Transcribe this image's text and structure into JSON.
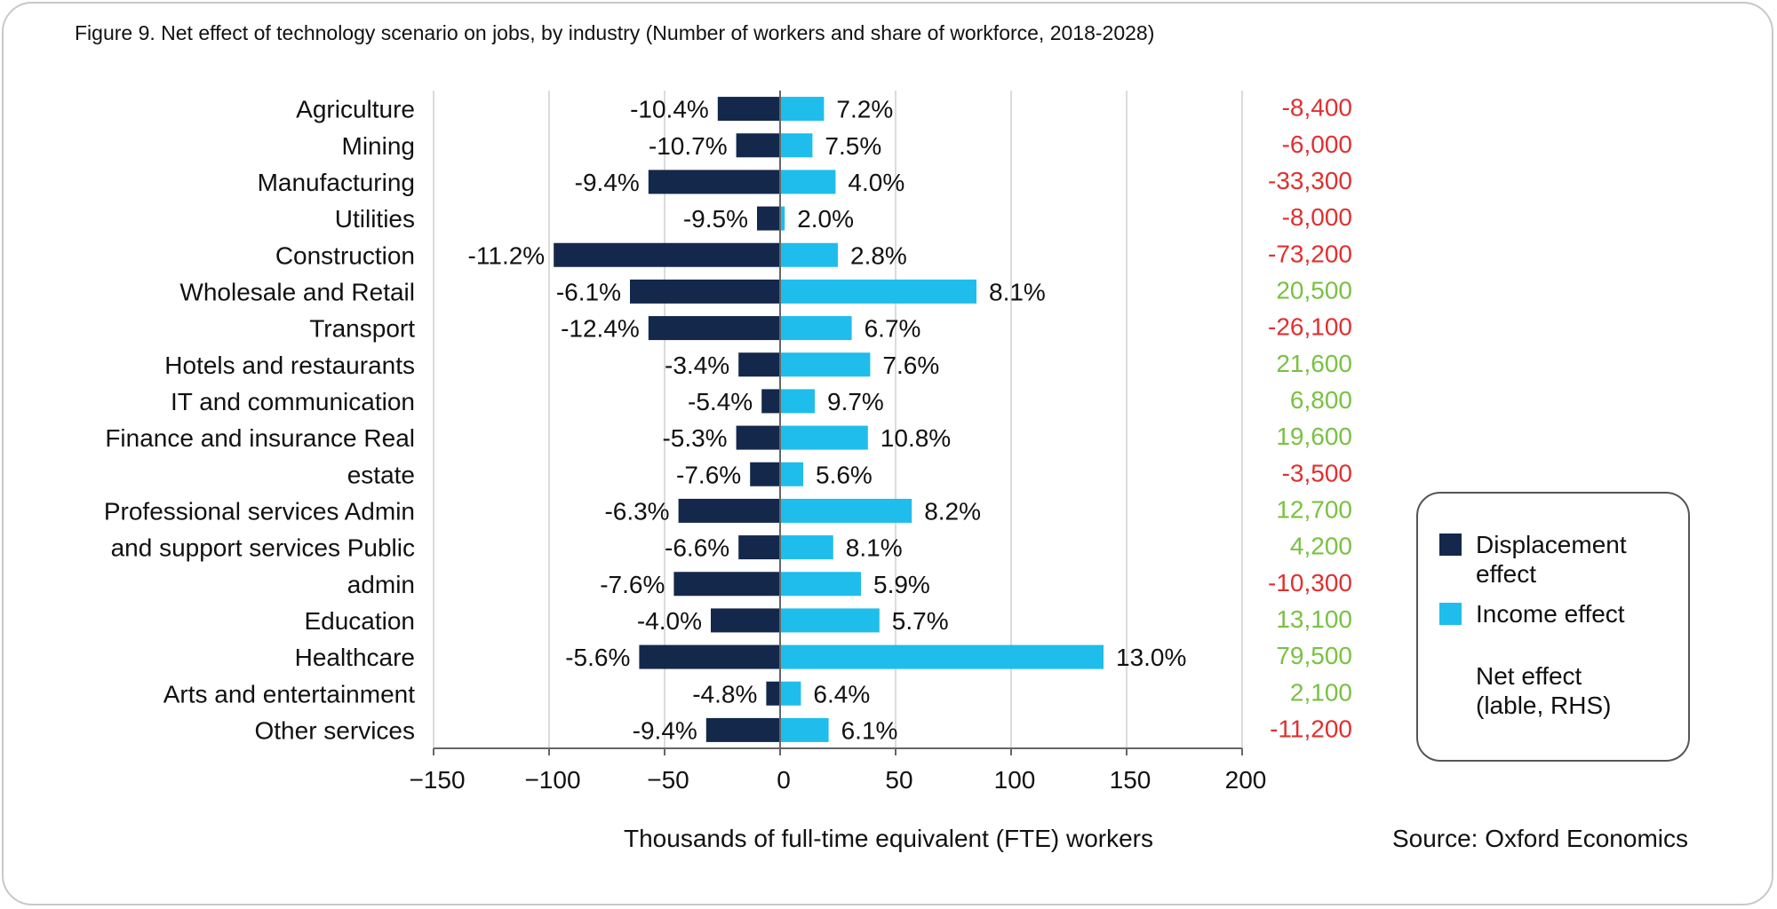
{
  "chart_data": {
    "type": "bar",
    "title": "Figure 9. Net effect of technology scenario on jobs, by industry (Number of workers and share of workforce, 2018-2028)",
    "xlabel": "Thousands of full-time equivalent (FTE) workers",
    "source": "Source: Oxford Economics",
    "xlim": [
      -150,
      200
    ],
    "xticks": [
      -150,
      -100,
      -50,
      0,
      50,
      100,
      150,
      200
    ],
    "grid": true,
    "legend_position": "right",
    "categories": [
      "Agriculture",
      "Mining",
      "Manufacturing",
      "Utilities",
      "Construction",
      "Wholesale and Retail",
      "Transport",
      "Hotels and restaurants",
      "IT and communication",
      "Finance and insurance Real",
      "estate",
      "Professional services Admin",
      "and support services Public",
      "admin",
      "Education",
      "Healthcare",
      "Arts and entertainment",
      "Other services"
    ],
    "series": [
      {
        "name": "Displacement effect",
        "color": "#14284b",
        "values": [
          -27,
          -19,
          -57,
          -10,
          -98,
          -65,
          -57,
          -18,
          -8,
          -19,
          -13,
          -44,
          -18,
          -46,
          -30,
          -61,
          -6,
          -32
        ],
        "labels": [
          "-10.4%",
          "-10.7%",
          "-9.4%",
          "-9.5%",
          "-11.2%",
          "-6.1%",
          "-12.4%",
          "-3.4%",
          "-5.4%",
          "-5.3%",
          "-7.6%",
          "-6.3%",
          "-6.6%",
          "-7.6%",
          "-4.0%",
          "-5.6%",
          "-4.8%",
          "-9.4%"
        ]
      },
      {
        "name": "Income effect",
        "color": "#1fbdeb",
        "values": [
          19,
          14,
          24,
          2,
          25,
          85,
          31,
          39,
          15,
          38,
          10,
          57,
          23,
          35,
          43,
          140,
          9,
          21
        ],
        "labels": [
          "7.2%",
          "7.5%",
          "4.0%",
          "2.0%",
          "2.8%",
          "8.1%",
          "6.7%",
          "7.6%",
          "9.7%",
          "10.8%",
          "5.6%",
          "8.2%",
          "8.1%",
          "5.9%",
          "5.7%",
          "13.0%",
          "6.4%",
          "6.1%"
        ]
      }
    ],
    "net_effect": {
      "name": "Net effect (lable, RHS)",
      "name_lines": [
        "Net effect",
        "(lable, RHS)"
      ],
      "labels": [
        "-8,400",
        "-6,000",
        "-33,300",
        "-8,000",
        "-73,200",
        "20,500",
        "-26,100",
        "21,600",
        "6,800",
        "19,600",
        "-3,500",
        "12,700",
        "4,200",
        "-10,300",
        "13,100",
        "79,500",
        "2,100",
        "-11,200"
      ],
      "positive_color": "#7ac143",
      "negative_color": "#e03030"
    },
    "legend_lines": {
      "displacement": [
        "Displacement",
        "effect"
      ],
      "income": [
        "Income effect"
      ]
    }
  }
}
